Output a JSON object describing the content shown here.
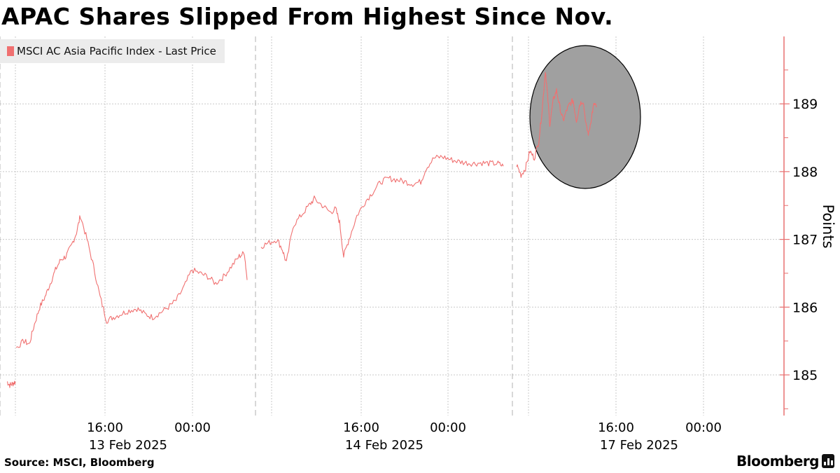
{
  "title": "APAC Shares Slipped From Highest Since Nov.",
  "legend": {
    "label": "MSCI AC Asia Pacific Index - Last Price",
    "color": "#f07070"
  },
  "footer": {
    "source": "Source: MSCI, Bloomberg",
    "brand": "Bloomberg",
    "brand_icon": "bar-chart-icon"
  },
  "chart_data": {
    "type": "line",
    "ylabel": "Points",
    "ylim": [
      184.45,
      190
    ],
    "yticks": [
      185,
      186,
      187,
      188,
      189
    ],
    "y_axis_position": "right",
    "grid": true,
    "legend_position": "top-left",
    "line_color": "#f07070",
    "highlight_color": "#a0a0a0",
    "highlight_note": "gray circular highlight over the 17 Feb morning peak",
    "x_ticks": [
      {
        "time": "16:00",
        "date": "13 Feb 2025"
      },
      {
        "time": "00:00",
        "date": ""
      },
      {
        "time": "16:00",
        "date": "14 Feb 2025"
      },
      {
        "time": "00:00",
        "date": ""
      },
      {
        "time": "16:00",
        "date": "17 Feb 2025"
      },
      {
        "time": "00:00",
        "date": ""
      }
    ],
    "session_breaks": [
      "13 Feb 2025",
      "14 Feb 2025",
      "17 Feb 2025"
    ],
    "series": [
      {
        "name": "MSCI AC Asia Pacific Index - Last Price",
        "segments": [
          [
            [
              0.0,
              184.9
            ],
            [
              0.15,
              184.85
            ],
            [
              0.3,
              184.87
            ],
            [
              0.45,
              184.9
            ]
          ],
          [
            [
              0.5,
              185.4
            ],
            [
              0.8,
              185.5
            ],
            [
              1.0,
              185.45
            ],
            [
              1.2,
              185.75
            ],
            [
              1.4,
              186.0
            ],
            [
              1.6,
              186.15
            ],
            [
              1.8,
              186.35
            ],
            [
              2.0,
              186.55
            ],
            [
              2.2,
              186.7
            ],
            [
              2.4,
              186.75
            ],
            [
              2.6,
              186.9
            ],
            [
              2.8,
              187.1
            ],
            [
              2.95,
              187.35
            ],
            [
              3.2,
              187.0
            ],
            [
              3.45,
              186.6
            ],
            [
              3.7,
              186.15
            ],
            [
              3.95,
              185.8
            ],
            [
              4.2,
              185.85
            ],
            [
              4.5,
              185.9
            ],
            [
              4.8,
              185.95
            ],
            [
              5.1,
              185.98
            ],
            [
              5.4,
              185.9
            ],
            [
              5.7,
              185.85
            ],
            [
              6.0,
              185.92
            ],
            [
              6.3,
              186.0
            ],
            [
              6.6,
              186.1
            ],
            [
              6.9,
              186.3
            ],
            [
              7.2,
              186.55
            ],
            [
              7.5,
              186.5
            ],
            [
              7.8,
              186.45
            ],
            [
              8.1,
              186.35
            ],
            [
              8.4,
              186.45
            ],
            [
              8.7,
              186.6
            ],
            [
              9.0,
              186.75
            ],
            [
              9.2,
              186.8
            ],
            [
              9.3,
              186.4
            ]
          ],
          [
            [
              9.4,
              186.9
            ],
            [
              9.7,
              186.95
            ],
            [
              10.0,
              187.0
            ],
            [
              10.2,
              186.85
            ],
            [
              10.35,
              186.65
            ],
            [
              10.6,
              187.2
            ],
            [
              10.9,
              187.35
            ],
            [
              11.2,
              187.5
            ],
            [
              11.4,
              187.6
            ],
            [
              11.7,
              187.5
            ],
            [
              12.0,
              187.4
            ],
            [
              12.2,
              187.45
            ],
            [
              12.35,
              187.25
            ],
            [
              12.5,
              186.75
            ],
            [
              12.7,
              187.0
            ],
            [
              13.0,
              187.35
            ],
            [
              13.3,
              187.55
            ],
            [
              13.6,
              187.7
            ],
            [
              13.9,
              187.85
            ],
            [
              14.2,
              187.9
            ],
            [
              14.5,
              187.88
            ],
            [
              14.8,
              187.85
            ],
            [
              15.1,
              187.82
            ],
            [
              15.4,
              187.85
            ],
            [
              15.6,
              188.05
            ],
            [
              15.9,
              188.2
            ],
            [
              16.2,
              188.22
            ],
            [
              16.5,
              188.18
            ],
            [
              16.8,
              188.15
            ],
            [
              17.1,
              188.13
            ],
            [
              17.4,
              188.12
            ],
            [
              17.7,
              188.13
            ],
            [
              18.0,
              188.12
            ],
            [
              18.3,
              188.12
            ],
            [
              18.5,
              188.08
            ]
          ],
          [
            [
              18.7,
              188.1
            ],
            [
              18.9,
              187.95
            ],
            [
              19.1,
              188.05
            ],
            [
              19.3,
              188.3
            ],
            [
              19.5,
              188.2
            ],
            [
              19.7,
              188.45
            ],
            [
              19.85,
              188.9
            ],
            [
              20.0,
              189.5
            ],
            [
              20.1,
              189.1
            ],
            [
              20.2,
              188.7
            ],
            [
              20.35,
              189.05
            ],
            [
              20.5,
              189.2
            ],
            [
              20.65,
              188.95
            ],
            [
              20.8,
              188.75
            ],
            [
              20.95,
              188.9
            ],
            [
              21.1,
              189.0
            ],
            [
              21.25,
              189.05
            ],
            [
              21.4,
              188.75
            ],
            [
              21.55,
              189.0
            ],
            [
              21.7,
              189.05
            ],
            [
              21.85,
              188.65
            ],
            [
              21.95,
              188.55
            ],
            [
              22.1,
              188.85
            ],
            [
              22.2,
              189.0
            ],
            [
              22.3,
              188.95
            ]
          ]
        ]
      }
    ]
  }
}
